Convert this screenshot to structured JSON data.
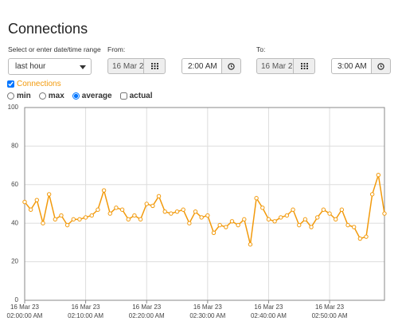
{
  "header": {
    "title": "Connections"
  },
  "controls": {
    "range_label": "Select or enter date/time range",
    "range_value": "last hour",
    "from_label": "From:",
    "from_date": "16 Mar 2",
    "from_time": "2:00 AM",
    "to_label": "To:",
    "to_date": "16 Mar 2",
    "to_time": "3:00 AM",
    "series_checked": true,
    "options": [
      {
        "label": "min",
        "kind": "radio",
        "checked": false
      },
      {
        "label": "max",
        "kind": "radio",
        "checked": false
      },
      {
        "label": "average",
        "kind": "radio",
        "checked": true
      },
      {
        "label": "actual",
        "kind": "checkbox",
        "checked": false
      }
    ]
  },
  "chart_data": {
    "type": "line",
    "x": [
      0,
      1,
      2,
      3,
      4,
      5,
      6,
      7,
      8,
      9,
      10,
      11,
      12,
      13,
      14,
      15,
      16,
      17,
      18,
      19,
      20,
      21,
      22,
      23,
      24,
      25,
      26,
      27,
      28,
      29,
      30,
      31,
      32,
      33,
      34,
      35,
      36,
      37,
      38,
      39,
      40,
      41,
      42,
      43,
      44,
      45,
      46,
      47,
      48,
      49,
      50,
      51,
      52,
      53,
      54,
      55,
      56,
      57,
      58,
      59
    ],
    "series": [
      {
        "name": "Connections",
        "color": "#f29a0c",
        "values": [
          51,
          47,
          52,
          40,
          55,
          42,
          44,
          39,
          42,
          42,
          43,
          44,
          47,
          57,
          45,
          48,
          47,
          42,
          44,
          42,
          50,
          49,
          54,
          46,
          45,
          46,
          47,
          40,
          46,
          43,
          44,
          35,
          39,
          38,
          41,
          39,
          42,
          29,
          53,
          48,
          42,
          41,
          43,
          44,
          47,
          39,
          42,
          38,
          43,
          47,
          45,
          42,
          47,
          39,
          38,
          32,
          33,
          55,
          65,
          45
        ]
      }
    ],
    "xlim": [
      0,
      59
    ],
    "xticks": [
      {
        "value": 0,
        "label": "16 Mar 23\n02:00:00 AM"
      },
      {
        "value": 10,
        "label": "16 Mar 23\n02:10:00 AM"
      },
      {
        "value": 20,
        "label": "16 Mar 23\n02:20:00 AM"
      },
      {
        "value": 30,
        "label": "16 Mar 23\n02:30:00 AM"
      },
      {
        "value": 40,
        "label": "16 Mar 23\n02:40:00 AM"
      },
      {
        "value": 50,
        "label": "16 Mar 23\n02:50:00 AM"
      }
    ],
    "ylim": [
      0,
      100
    ],
    "yticks": [
      0,
      20,
      40,
      60,
      80,
      100
    ],
    "grid": true
  }
}
